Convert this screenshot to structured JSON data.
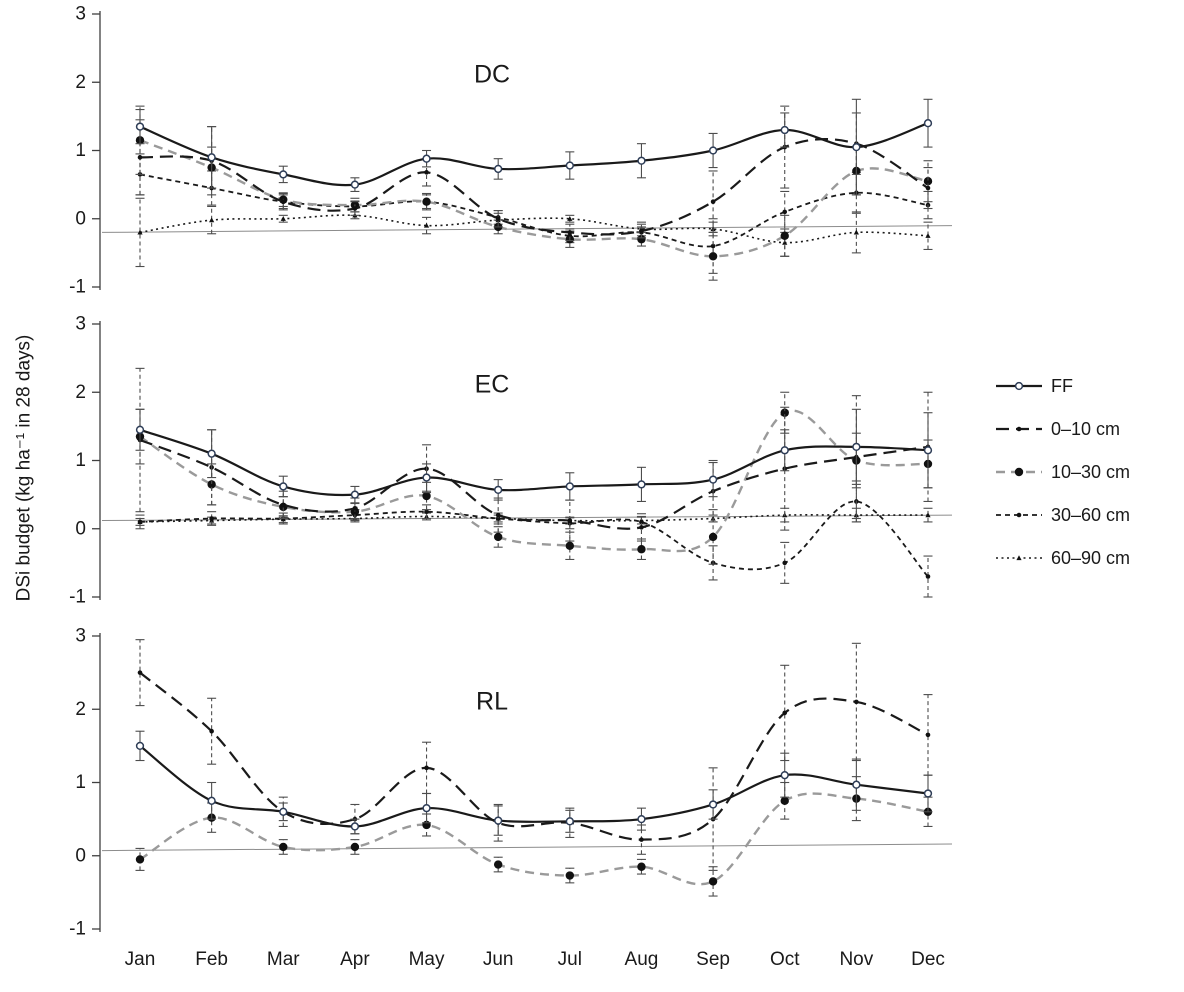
{
  "chart_data": {
    "type": "line",
    "ylabel": "DSi budget (kg ha⁻¹ in 28 days)",
    "categories": [
      "Jan",
      "Feb",
      "Mar",
      "Apr",
      "May",
      "Jun",
      "Jul",
      "Aug",
      "Sep",
      "Oct",
      "Nov",
      "Dec"
    ],
    "ylim": [
      -1,
      3
    ],
    "yticks": [
      3,
      2,
      1,
      0,
      -1
    ],
    "grid": false,
    "legend_position": "right",
    "colors": {
      "axis": "#404040",
      "baseline": "#8c8c8c",
      "error_bar": "#4d4d4d",
      "series_black": "#1a1a1a",
      "series_gray": "#9a9a9a",
      "marker_open_stroke": "#2e3d57",
      "text": "#1a1a1a"
    },
    "series_styles": [
      {
        "id": "FF",
        "label": "FF",
        "color": "#1a1a1a",
        "dash": "solid",
        "marker": "open-circle"
      },
      {
        "id": "0-10",
        "label": "0–10 cm",
        "color": "#1a1a1a",
        "dash": "long-dash",
        "marker": "small-dot"
      },
      {
        "id": "10-30",
        "label": "10–30 cm",
        "color": "#9a9a9a",
        "dash": "dash",
        "marker": "filled-circle"
      },
      {
        "id": "30-60",
        "label": "30–60 cm",
        "color": "#1a1a1a",
        "dash": "short-dash",
        "marker": "small-dot"
      },
      {
        "id": "60-90",
        "label": "60–90 cm",
        "color": "#1a1a1a",
        "dash": "dot",
        "marker": "triangle"
      }
    ],
    "panels": [
      {
        "title": "DC",
        "baseline": [
          -0.2,
          -0.1
        ],
        "series": [
          {
            "id": "60-90",
            "values": [
              -0.2,
              -0.02,
              0.0,
              0.05,
              -0.1,
              -0.02,
              0.0,
              -0.15,
              -0.15,
              -0.35,
              -0.2,
              -0.25
            ],
            "err": [
              0.5,
              0.2,
              0.05,
              0.05,
              0.12,
              0.1,
              0.05,
              0.1,
              0.1,
              0.2,
              0.3,
              0.2
            ]
          },
          {
            "id": "30-60",
            "values": [
              0.65,
              0.45,
              0.25,
              0.18,
              0.25,
              0.02,
              -0.25,
              -0.2,
              -0.4,
              0.1,
              0.38,
              0.2
            ],
            "err": [
              0.3,
              0.25,
              0.1,
              0.08,
              0.1,
              0.1,
              0.1,
              0.08,
              0.4,
              0.3,
              0.3,
              0.2
            ]
          },
          {
            "id": "10-30",
            "values": [
              1.15,
              0.75,
              0.28,
              0.2,
              0.25,
              -0.12,
              -0.3,
              -0.3,
              -0.55,
              -0.25,
              0.7,
              0.55
            ],
            "err": [
              0.5,
              0.3,
              0.1,
              0.1,
              0.12,
              0.1,
              0.12,
              0.1,
              0.35,
              0.3,
              0.35,
              0.3
            ]
          },
          {
            "id": "0-10",
            "values": [
              0.9,
              0.85,
              0.25,
              0.15,
              0.68,
              0.0,
              -0.2,
              -0.18,
              0.25,
              1.05,
              1.1,
              0.45
            ],
            "err": [
              0.55,
              0.5,
              0.12,
              0.1,
              0.2,
              0.12,
              0.12,
              0.1,
              0.45,
              0.6,
              0.45,
              0.3
            ]
          },
          {
            "id": "FF",
            "values": [
              1.35,
              0.9,
              0.65,
              0.5,
              0.88,
              0.73,
              0.78,
              0.85,
              1.0,
              1.3,
              1.05,
              1.4
            ],
            "err": [
              0.25,
              0.45,
              0.12,
              0.1,
              0.12,
              0.15,
              0.2,
              0.25,
              0.25,
              0.25,
              0.7,
              0.35
            ]
          }
        ]
      },
      {
        "title": "EC",
        "baseline": [
          0.12,
          0.2
        ],
        "series": [
          {
            "id": "60-90",
            "values": [
              0.1,
              0.12,
              0.14,
              0.15,
              0.18,
              0.15,
              0.12,
              0.12,
              0.15,
              0.2,
              0.2,
              0.2
            ],
            "err": [
              0.05,
              0.05,
              0.05,
              0.05,
              0.05,
              0.05,
              0.05,
              0.05,
              0.05,
              0.1,
              0.1,
              0.1
            ]
          },
          {
            "id": "30-60",
            "values": [
              0.1,
              0.15,
              0.15,
              0.2,
              0.25,
              0.15,
              0.08,
              0.1,
              -0.5,
              -0.5,
              0.4,
              -0.7
            ],
            "err": [
              0.1,
              0.1,
              0.08,
              0.08,
              0.1,
              0.08,
              0.08,
              0.08,
              0.25,
              0.3,
              0.3,
              0.3
            ]
          },
          {
            "id": "10-30",
            "values": [
              1.35,
              0.65,
              0.32,
              0.25,
              0.48,
              -0.12,
              -0.25,
              -0.3,
              -0.12,
              1.7,
              1.0,
              0.95
            ],
            "err": [
              0.4,
              0.3,
              0.15,
              0.12,
              0.2,
              0.15,
              0.2,
              0.15,
              0.4,
              0.3,
              0.4,
              0.35
            ]
          },
          {
            "id": "0-10",
            "values": [
              1.3,
              0.9,
              0.35,
              0.3,
              0.88,
              0.2,
              0.12,
              0.02,
              0.55,
              0.88,
              1.05,
              1.2
            ],
            "err": [
              1.05,
              0.55,
              0.2,
              0.15,
              0.35,
              0.25,
              0.3,
              0.2,
              0.45,
              0.9,
              0.9,
              0.8
            ]
          },
          {
            "id": "FF",
            "values": [
              1.45,
              1.1,
              0.62,
              0.5,
              0.75,
              0.57,
              0.62,
              0.65,
              0.72,
              1.15,
              1.2,
              1.15
            ],
            "err": [
              0.3,
              0.35,
              0.15,
              0.12,
              0.2,
              0.15,
              0.2,
              0.25,
              0.25,
              0.3,
              0.55,
              0.55
            ]
          }
        ]
      },
      {
        "title": "RL",
        "baseline": [
          0.07,
          0.16
        ],
        "series": [
          {
            "id": "10-30",
            "values": [
              -0.05,
              0.52,
              0.12,
              0.12,
              0.42,
              -0.12,
              -0.27,
              -0.15,
              -0.35,
              0.75,
              0.78,
              0.6
            ],
            "err": [
              0.15,
              0.2,
              0.1,
              0.1,
              0.15,
              0.1,
              0.1,
              0.1,
              0.2,
              0.25,
              0.3,
              0.2
            ]
          },
          {
            "id": "0-10",
            "values": [
              2.5,
              1.7,
              0.6,
              0.5,
              1.2,
              0.45,
              0.45,
              0.22,
              0.5,
              1.95,
              2.1,
              1.65
            ],
            "err": [
              0.45,
              0.45,
              0.2,
              0.2,
              0.35,
              0.25,
              0.2,
              0.2,
              0.7,
              0.65,
              0.8,
              0.55
            ]
          },
          {
            "id": "FF",
            "values": [
              1.5,
              0.75,
              0.6,
              0.4,
              0.65,
              0.48,
              0.47,
              0.5,
              0.7,
              1.1,
              0.97,
              0.85
            ],
            "err": [
              0.2,
              0.25,
              0.12,
              0.1,
              0.2,
              0.2,
              0.15,
              0.15,
              0.2,
              0.3,
              0.35,
              0.25
            ]
          }
        ]
      }
    ]
  }
}
